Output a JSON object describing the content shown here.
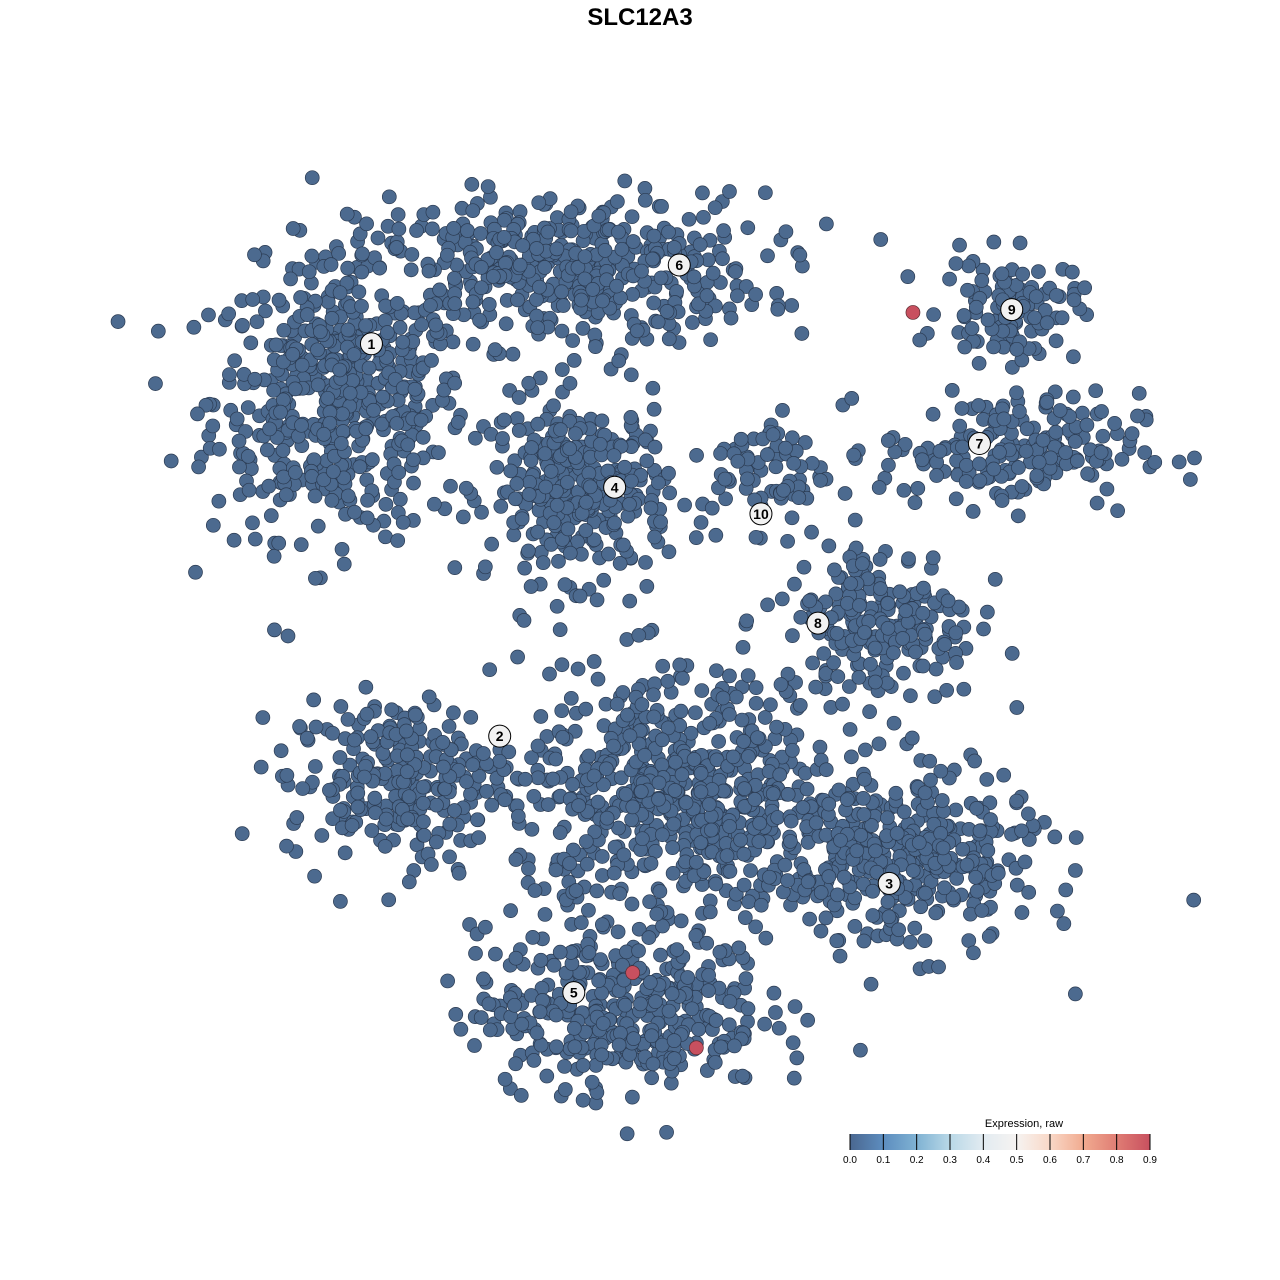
{
  "chart_data": {
    "type": "scatter",
    "title": "SLC12A3",
    "xlim": [
      0,
      100
    ],
    "ylim": [
      0,
      100
    ],
    "grid": false,
    "axes_visible": false,
    "point_color": "#4c6a8f",
    "clusters": [
      {
        "label": "1",
        "label_pos": [
          19.1,
          79.6
        ],
        "components": [
          {
            "center": [
              15.8,
              73.7
            ],
            "spread": [
              7.9,
              8.4
            ],
            "n": 520
          }
        ]
      },
      {
        "label": "6",
        "label_pos": [
          51.5,
          87.9
        ],
        "components": [
          {
            "center": [
              38.9,
              87.4
            ],
            "spread": [
              12.6,
              4.7
            ],
            "n": 480
          }
        ]
      },
      {
        "label": "4",
        "label_pos": [
          44.7,
          64.5
        ],
        "components": [
          {
            "center": [
              41.1,
              64.2
            ],
            "spread": [
              5.5,
              5.5
            ],
            "n": 330
          }
        ]
      },
      {
        "label": "9",
        "label_pos": [
          86.5,
          83.2
        ],
        "components": [
          {
            "center": [
              86.3,
              83.2
            ],
            "spread": [
              4.2,
              3.2
            ],
            "n": 110
          }
        ]
      },
      {
        "label": "7",
        "label_pos": [
          83.1,
          69.1
        ],
        "components": [
          {
            "center": [
              86.3,
              68.4
            ],
            "spread": [
              8,
              3.5
            ],
            "n": 200
          }
        ]
      },
      {
        "label": "10",
        "label_pos": [
          60.1,
          61.7
        ],
        "components": [
          {
            "center": [
              61.1,
              66.3
            ],
            "spread": [
              3.5,
              3.5
            ],
            "n": 70
          }
        ]
      },
      {
        "label": "8",
        "label_pos": [
          66.1,
          50.2
        ],
        "components": [
          {
            "center": [
              72.6,
              50.5
            ],
            "spread": [
              6,
              5
            ],
            "n": 220
          }
        ]
      },
      {
        "label": "2",
        "label_pos": [
          32.6,
          38.3
        ],
        "components": [
          {
            "center": [
              22.1,
              33.7
            ],
            "spread": [
              7,
              5
            ],
            "n": 260
          }
        ]
      },
      {
        "label": "5",
        "label_pos": [
          40.4,
          11.3
        ],
        "components": [
          {
            "center": [
              45.3,
              9.5
            ],
            "spread": [
              9,
              5
            ],
            "n": 380
          },
          {
            "center": [
              51.6,
              31.6
            ],
            "spread": [
              10,
              8
            ],
            "n": 620
          }
        ]
      },
      {
        "label": "3",
        "label_pos": [
          73.6,
          22.8
        ],
        "components": [
          {
            "center": [
              74.7,
              25.3
            ],
            "spread": [
              8.5,
              5.5
            ],
            "n": 380
          }
        ]
      }
    ],
    "expressing_points": [
      {
        "x": 76.1,
        "y": 82.9,
        "value": 0.9
      },
      {
        "x": 46.6,
        "y": 13.4,
        "value": 0.9
      },
      {
        "x": 53.3,
        "y": 5.5,
        "value": 0.9
      }
    ],
    "background_value": 0.0,
    "legend": {
      "title": "Expression, raw",
      "placement": "bottom-right",
      "ticks": [
        "0.0",
        "0.1",
        "0.2",
        "0.3",
        "0.4",
        "0.5",
        "0.6",
        "0.7",
        "0.8",
        "0.9"
      ],
      "colors": [
        "#4a6790",
        "#5d8dbf",
        "#7fb2d3",
        "#b9d8e7",
        "#e2ebf1",
        "#f6f3f1",
        "#f9d8c7",
        "#f1ab90",
        "#e07d74",
        "#c8505f"
      ]
    }
  }
}
